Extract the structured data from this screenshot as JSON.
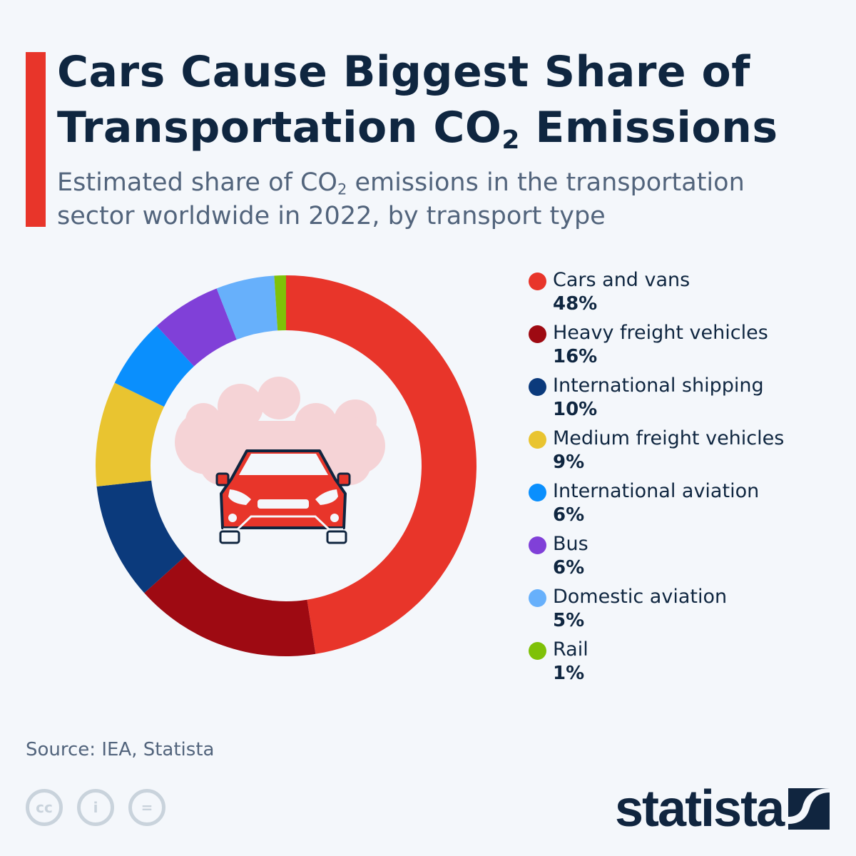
{
  "header": {
    "title_line1": "Cars Cause Biggest Share of",
    "title_line2_pre": "Transportation CO",
    "title_line2_sub": "2",
    "title_line2_post": " Emissions",
    "subtitle_pre": "Estimated share of CO",
    "subtitle_sub": "2",
    "subtitle_post": " emissions in the transportation sector worldwide in 2022, by transport type"
  },
  "chart_data": {
    "type": "pie",
    "variant": "donut",
    "unit": "%",
    "legend_position": "right",
    "categories": [
      "Cars and vans",
      "Heavy freight vehicles",
      "International shipping",
      "Medium freight vehicles",
      "International aviation",
      "Bus",
      "Domestic aviation",
      "Rail"
    ],
    "values": [
      48,
      16,
      10,
      9,
      6,
      6,
      5,
      1
    ],
    "value_labels": [
      "48%",
      "16%",
      "10%",
      "9%",
      "6%",
      "6%",
      "5%",
      "1%"
    ],
    "colors": [
      "#e8352a",
      "#9e0a12",
      "#0b3a7c",
      "#e9c430",
      "#0a8ffd",
      "#8040d8",
      "#67b0fb",
      "#7fc108"
    ],
    "center_icon": "car-with-smoke-cloud-icon"
  },
  "footer": {
    "source": "Source: IEA, Statista",
    "license_icons": [
      "cc-icon",
      "attribution-icon",
      "no-derivatives-icon"
    ],
    "logo": "statista"
  }
}
